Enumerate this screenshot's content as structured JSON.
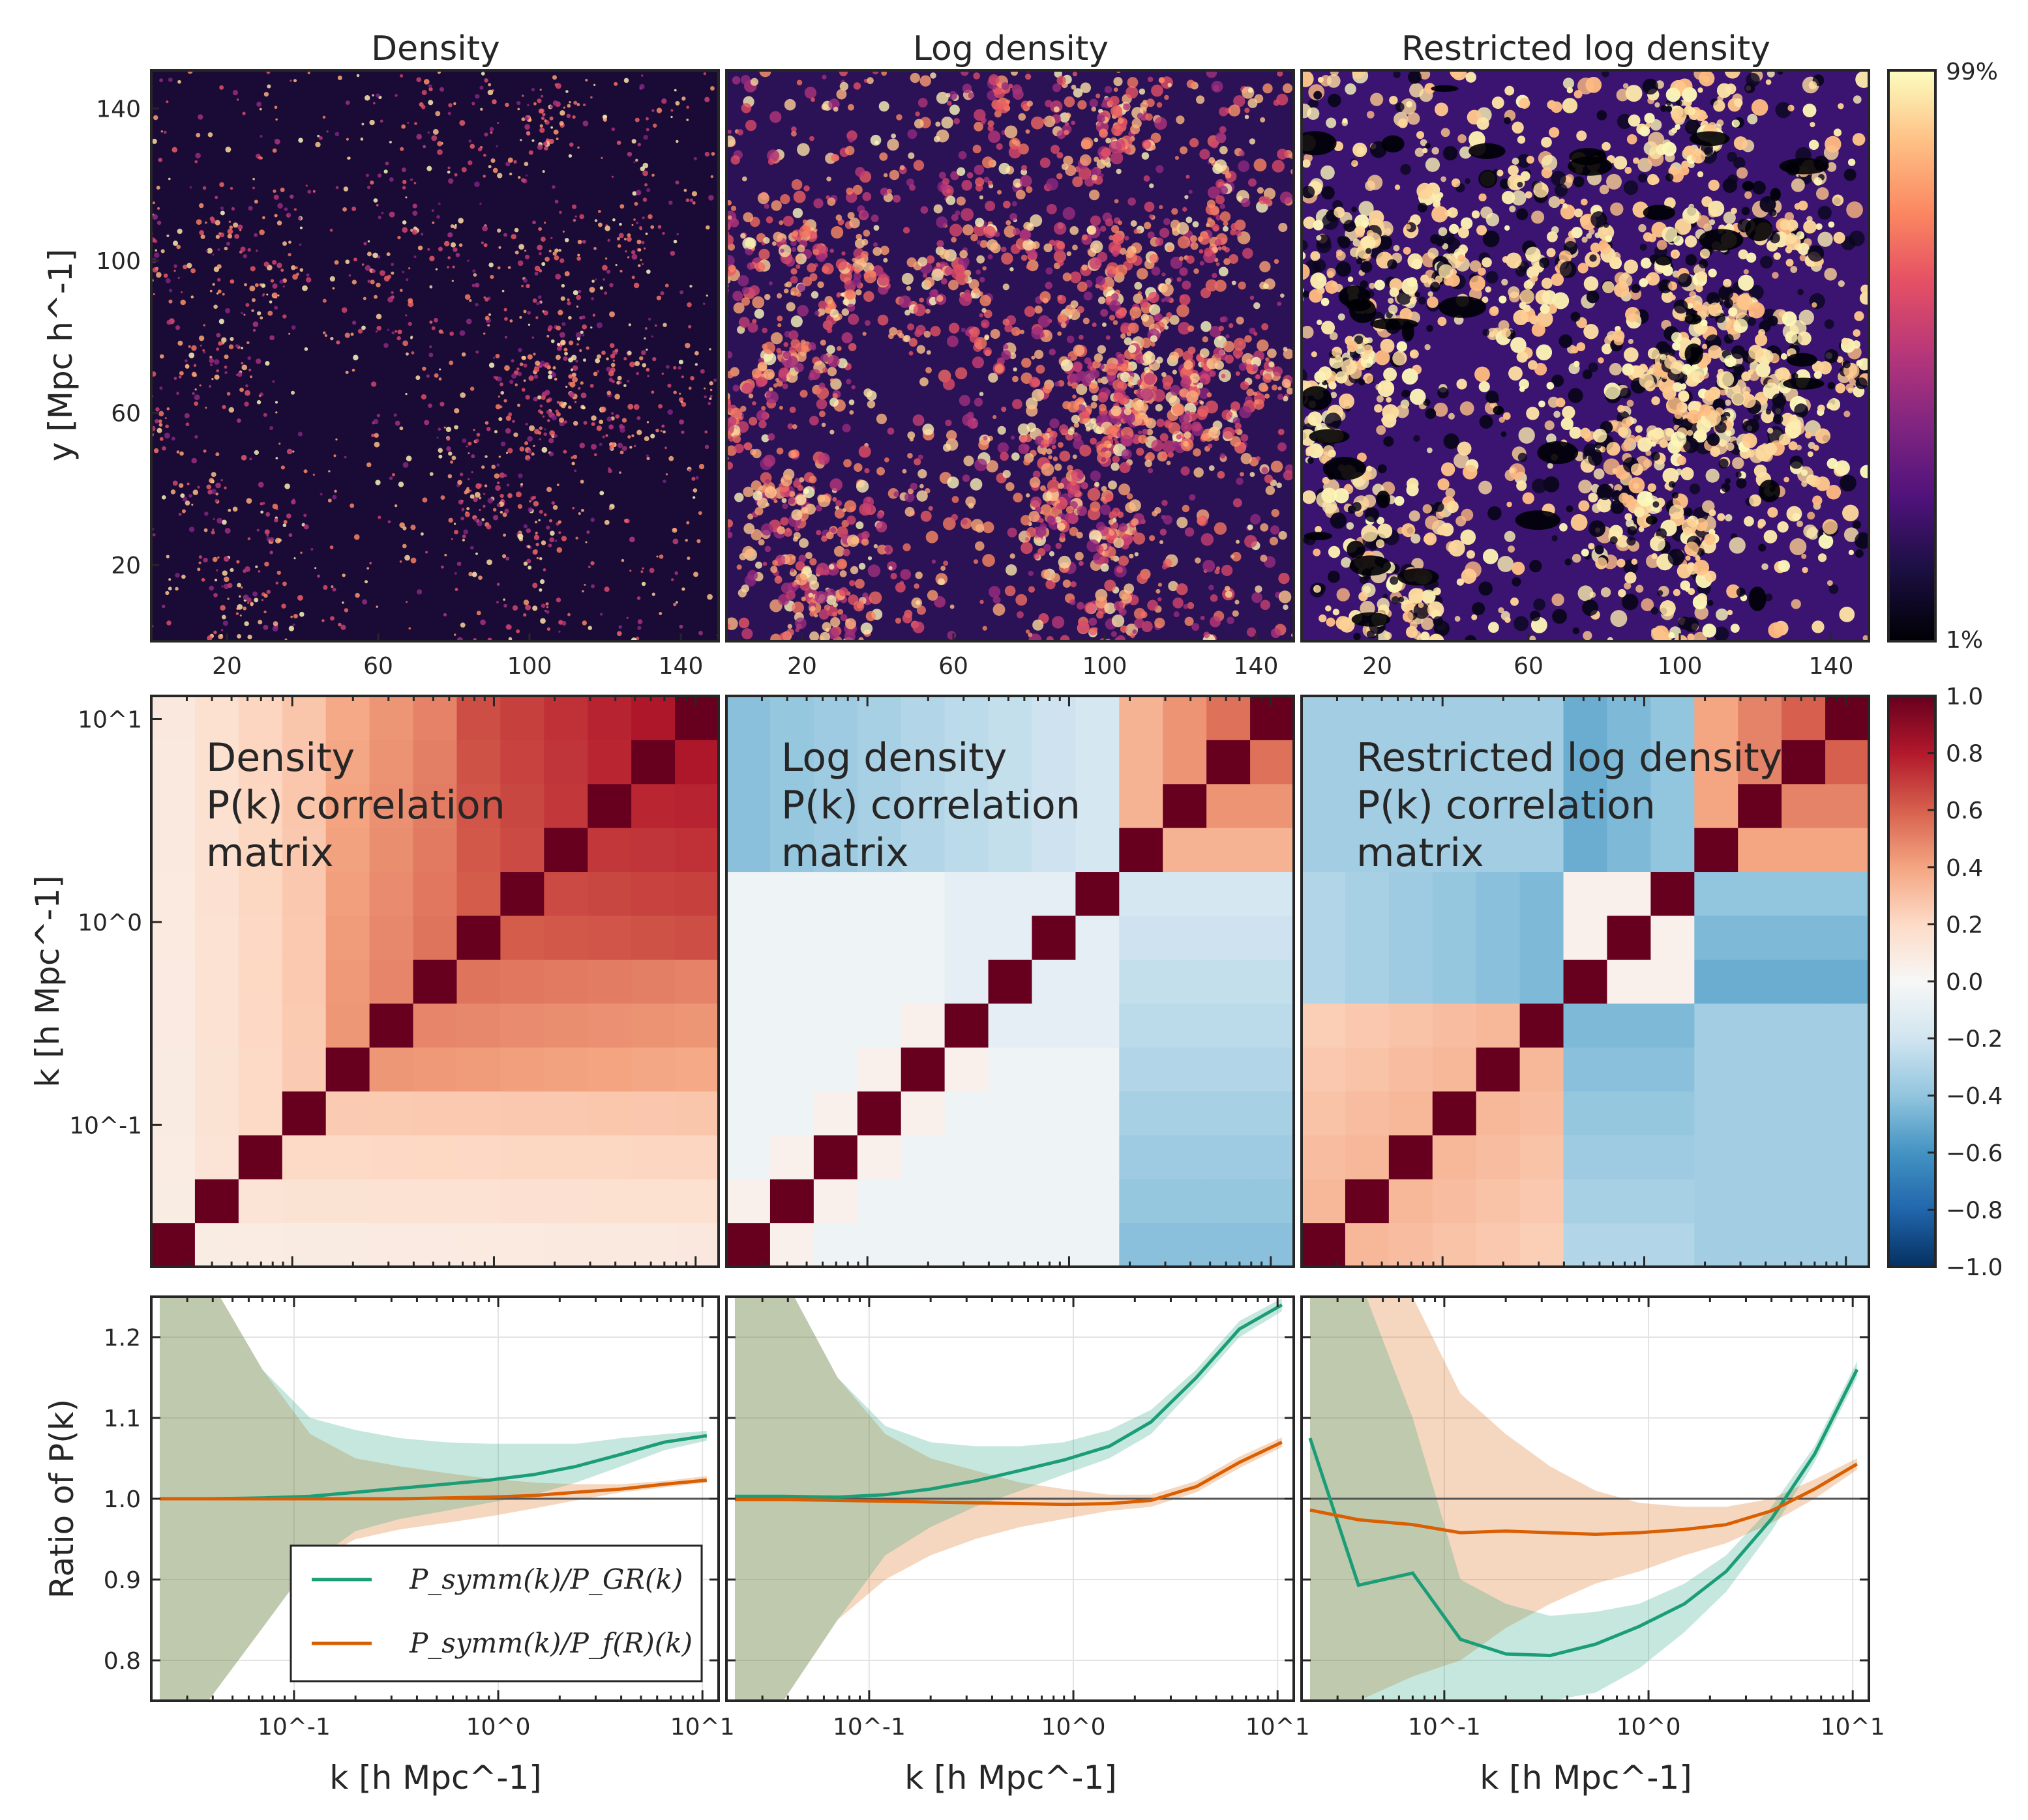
{
  "chart_data": [
    {
      "type": "heatmap",
      "row": "density-maps",
      "colorbar": {
        "top_label": "99%",
        "bottom_label": "1%",
        "colormap": "magma"
      },
      "xlabel": "",
      "ylabel": "y [Mpc h^-1]",
      "xlim": [
        0,
        150
      ],
      "ylim": [
        0,
        150
      ],
      "x_ticks": [
        "20",
        "60",
        "100",
        "140"
      ],
      "y_ticks": [
        "20",
        "60",
        "100",
        "140"
      ],
      "panels": [
        {
          "title": "Density",
          "style": "sparse"
        },
        {
          "title": "Log density",
          "style": "web"
        },
        {
          "title": "Restricted log density",
          "style": "saturated"
        }
      ]
    },
    {
      "type": "heatmap",
      "row": "correlation-matrices",
      "ylabel": "k [h Mpc^-1]",
      "y_ticks": [
        "10^-1",
        "10^0",
        "10^1"
      ],
      "colorbar": {
        "min": -1.0,
        "max": 1.0,
        "ticks": [
          "1.0",
          "0.8",
          "0.6",
          "0.4",
          "0.2",
          "0.0",
          "−0.2",
          "−0.4",
          "−0.6",
          "−0.8",
          "−1.0"
        ],
        "colormap": "RdBu_r"
      },
      "panels": [
        {
          "label": [
            "Density",
            "P(k) correlation",
            "matrix"
          ],
          "style": "density"
        },
        {
          "label": [
            "Log density",
            "P(k) correlation",
            "matrix"
          ],
          "style": "log"
        },
        {
          "label": [
            "Restricted log density",
            "P(k) correlation",
            "matrix"
          ],
          "style": "restricted"
        }
      ]
    },
    {
      "type": "line",
      "row": "power-spectrum-ratios",
      "xlabel": "k [h Mpc^-1]",
      "ylabel": "Ratio of P(k)",
      "xscale": "log",
      "xlim": [
        0.02,
        12
      ],
      "ylim": [
        0.75,
        1.25
      ],
      "x_ticks": [
        "10^-1",
        "10^0",
        "10^1"
      ],
      "y_ticks": [
        "0.8",
        "0.9",
        "1.0",
        "1.1",
        "1.2"
      ],
      "x": [
        0.022,
        0.038,
        0.07,
        0.12,
        0.2,
        0.33,
        0.55,
        0.9,
        1.5,
        2.4,
        4.0,
        6.5,
        10.5
      ],
      "legend": {
        "position": "lower-left",
        "entries": [
          "P_symm(k)/P_GR(k)",
          "P_symm(k)/P_f(R)(k)"
        ]
      },
      "colors": {
        "gr": "#1b9e77",
        "fR": "#d95f02"
      },
      "panels": [
        {
          "name": "Density",
          "series": [
            {
              "name": "P_symm(k)/P_GR(k)",
              "values": [
                1.0,
                1.0,
                1.001,
                1.003,
                1.008,
                1.013,
                1.018,
                1.023,
                1.03,
                1.04,
                1.055,
                1.07,
                1.078
              ],
              "lower": [
                0.75,
                0.75,
                0.84,
                0.92,
                0.96,
                0.975,
                0.985,
                0.995,
                1.005,
                1.02,
                1.04,
                1.06,
                1.072
              ],
              "upper": [
                1.3,
                1.3,
                1.16,
                1.1,
                1.085,
                1.075,
                1.07,
                1.068,
                1.068,
                1.068,
                1.075,
                1.08,
                1.084
              ]
            },
            {
              "name": "P_symm(k)/P_f(R)(k)",
              "values": [
                1.0,
                1.0,
                1.0,
                1.0,
                1.0,
                1.0,
                1.001,
                1.002,
                1.004,
                1.008,
                1.012,
                1.018,
                1.023
              ],
              "lower": [
                0.75,
                0.75,
                0.84,
                0.92,
                0.95,
                0.962,
                0.97,
                0.978,
                0.988,
                0.998,
                1.008,
                1.014,
                1.02
              ],
              "upper": [
                1.3,
                1.3,
                1.16,
                1.08,
                1.05,
                1.04,
                1.032,
                1.025,
                1.02,
                1.018,
                1.018,
                1.022,
                1.028
              ]
            }
          ]
        },
        {
          "name": "Log density",
          "series": [
            {
              "name": "P_symm(k)/P_GR(k)",
              "values": [
                1.003,
                1.003,
                1.002,
                1.005,
                1.012,
                1.022,
                1.035,
                1.048,
                1.065,
                1.095,
                1.15,
                1.21,
                1.24
              ],
              "lower": [
                0.75,
                0.75,
                0.85,
                0.93,
                0.965,
                0.99,
                1.01,
                1.03,
                1.05,
                1.08,
                1.14,
                1.2,
                1.232
              ],
              "upper": [
                1.3,
                1.3,
                1.15,
                1.09,
                1.07,
                1.065,
                1.065,
                1.07,
                1.085,
                1.11,
                1.16,
                1.22,
                1.248
              ]
            },
            {
              "name": "P_symm(k)/P_f(R)(k)",
              "values": [
                0.999,
                0.999,
                0.998,
                0.997,
                0.996,
                0.995,
                0.994,
                0.993,
                0.994,
                0.998,
                1.015,
                1.045,
                1.07
              ],
              "lower": [
                0.75,
                0.75,
                0.85,
                0.9,
                0.93,
                0.95,
                0.965,
                0.975,
                0.985,
                0.99,
                1.008,
                1.038,
                1.064
              ],
              "upper": [
                1.3,
                1.3,
                1.15,
                1.08,
                1.05,
                1.035,
                1.02,
                1.012,
                1.005,
                1.005,
                1.022,
                1.052,
                1.076
              ]
            }
          ]
        },
        {
          "name": "Restricted log density",
          "series": [
            {
              "name": "P_symm(k)/P_GR(k)",
              "values": [
                1.075,
                0.893,
                0.908,
                0.826,
                0.808,
                0.806,
                0.82,
                0.842,
                0.87,
                0.91,
                0.975,
                1.055,
                1.16
              ],
              "lower": [
                0.75,
                0.75,
                0.75,
                0.75,
                0.75,
                0.75,
                0.76,
                0.79,
                0.835,
                0.885,
                0.96,
                1.045,
                1.15
              ],
              "upper": [
                1.3,
                1.3,
                1.1,
                0.9,
                0.87,
                0.855,
                0.86,
                0.87,
                0.895,
                0.93,
                0.99,
                1.065,
                1.17
              ]
            },
            {
              "name": "P_symm(k)/P_f(R)(k)",
              "values": [
                0.986,
                0.974,
                0.968,
                0.958,
                0.96,
                0.958,
                0.956,
                0.958,
                0.962,
                0.968,
                0.985,
                1.012,
                1.043
              ],
              "lower": [
                0.75,
                0.75,
                0.78,
                0.8,
                0.84,
                0.87,
                0.895,
                0.91,
                0.93,
                0.945,
                0.97,
                1.0,
                1.036
              ],
              "upper": [
                1.3,
                1.3,
                1.25,
                1.13,
                1.08,
                1.04,
                1.01,
                0.995,
                0.99,
                0.99,
                1.0,
                1.024,
                1.05
              ]
            }
          ]
        }
      ]
    }
  ]
}
